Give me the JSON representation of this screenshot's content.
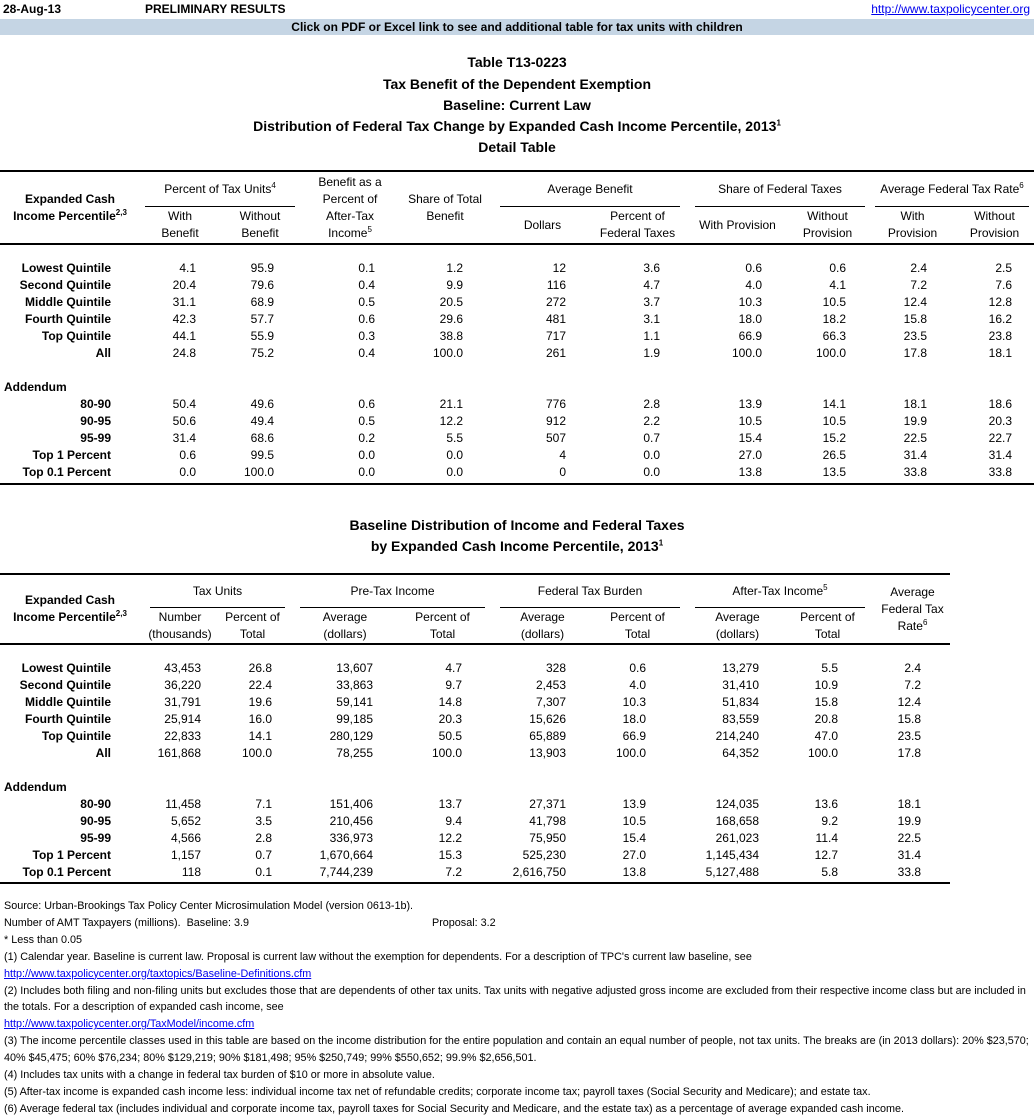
{
  "header": {
    "date": "28-Aug-13",
    "status": "PRELIMINARY RESULTS",
    "link": "http://www.taxpolicycenter.org",
    "banner": "Click on PDF or Excel link to see and additional table for tax units with children"
  },
  "title": [
    "Table T13-0223",
    "Tax Benefit of the Dependent Exemption",
    "Baseline: Current Law",
    {
      "text": "Distribution of Federal Tax Change by Expanded Cash Income Percentile, 2013",
      "sup": "1"
    },
    "Detail Table"
  ],
  "table1": {
    "row_header": {
      "text": "Expanded Cash Income Percentile",
      "sup": "2,3"
    },
    "header": [
      {
        "text": "Percent of Tax Units",
        "sup": "4",
        "columns": [
          "With Benefit",
          "Without Benefit"
        ]
      },
      {
        "text": "Benefit as a Percent of After-Tax Income",
        "sup": "5"
      },
      "Share of Total Benefit",
      {
        "text": "Average Benefit",
        "columns": [
          "Dollars",
          "Percent of Federal Taxes"
        ]
      },
      {
        "text": "Share of Federal Taxes",
        "columns": [
          "With Provision",
          "Without Provision"
        ]
      },
      {
        "text": "Average Federal Tax Rate",
        "sup": "6",
        "columns": [
          "With Provision",
          "Without Provision"
        ]
      }
    ],
    "rows": [
      [
        "Lowest Quintile",
        "4.1",
        "95.9",
        "0.1",
        "1.2",
        "12",
        "3.6",
        "0.6",
        "0.6",
        "2.4",
        "2.5"
      ],
      [
        "Second Quintile",
        "20.4",
        "79.6",
        "0.4",
        "9.9",
        "116",
        "4.7",
        "4.0",
        "4.1",
        "7.2",
        "7.6"
      ],
      [
        "Middle Quintile",
        "31.1",
        "68.9",
        "0.5",
        "20.5",
        "272",
        "3.7",
        "10.3",
        "10.5",
        "12.4",
        "12.8"
      ],
      [
        "Fourth Quintile",
        "42.3",
        "57.7",
        "0.6",
        "29.6",
        "481",
        "3.1",
        "18.0",
        "18.2",
        "15.8",
        "16.2"
      ],
      [
        "Top Quintile",
        "44.1",
        "55.9",
        "0.3",
        "38.8",
        "717",
        "1.1",
        "66.9",
        "66.3",
        "23.5",
        "23.8"
      ],
      [
        "All",
        "24.8",
        "75.2",
        "0.4",
        "100.0",
        "261",
        "1.9",
        "100.0",
        "100.0",
        "17.8",
        "18.1"
      ]
    ],
    "addendum_label": "Addendum",
    "addendum_rows": [
      [
        "80-90",
        "50.4",
        "49.6",
        "0.6",
        "21.1",
        "776",
        "2.8",
        "13.9",
        "14.1",
        "18.1",
        "18.6"
      ],
      [
        "90-95",
        "50.6",
        "49.4",
        "0.5",
        "12.2",
        "912",
        "2.2",
        "10.5",
        "10.5",
        "19.9",
        "20.3"
      ],
      [
        "95-99",
        "31.4",
        "68.6",
        "0.2",
        "5.5",
        "507",
        "0.7",
        "15.4",
        "15.2",
        "22.5",
        "22.7"
      ],
      [
        "Top 1 Percent",
        "0.6",
        "99.5",
        "0.0",
        "0.0",
        "4",
        "0.0",
        "27.0",
        "26.5",
        "31.4",
        "31.4"
      ],
      [
        "Top 0.1 Percent",
        "0.0",
        "100.0",
        "0.0",
        "0.0",
        "0",
        "0.0",
        "13.8",
        "13.5",
        "33.8",
        "33.8"
      ]
    ]
  },
  "title2": [
    "Baseline Distribution of Income and Federal Taxes",
    {
      "text": "by Expanded Cash Income Percentile, 2013",
      "sup": "1"
    }
  ],
  "table2": {
    "row_header": {
      "text": "Expanded Cash Income Percentile",
      "sup": "2,3"
    },
    "header": [
      {
        "text": "Tax Units",
        "columns": [
          "Number (thousands)",
          "Percent of Total"
        ]
      },
      {
        "text": "Pre-Tax Income",
        "columns": [
          "Average (dollars)",
          "Percent of Total"
        ]
      },
      {
        "text": "Federal Tax Burden",
        "columns": [
          "Average (dollars)",
          "Percent of Total"
        ]
      },
      {
        "text": "After-Tax Income",
        "sup": "5",
        "columns": [
          "Average (dollars)",
          "Percent of Total"
        ]
      },
      {
        "text": "Average Federal Tax Rate",
        "sup": "6"
      }
    ],
    "rows": [
      [
        "Lowest Quintile",
        "43,453",
        "26.8",
        "13,607",
        "4.7",
        "328",
        "0.6",
        "13,279",
        "5.5",
        "2.4"
      ],
      [
        "Second Quintile",
        "36,220",
        "22.4",
        "33,863",
        "9.7",
        "2,453",
        "4.0",
        "31,410",
        "10.9",
        "7.2"
      ],
      [
        "Middle Quintile",
        "31,791",
        "19.6",
        "59,141",
        "14.8",
        "7,307",
        "10.3",
        "51,834",
        "15.8",
        "12.4"
      ],
      [
        "Fourth Quintile",
        "25,914",
        "16.0",
        "99,185",
        "20.3",
        "15,626",
        "18.0",
        "83,559",
        "20.8",
        "15.8"
      ],
      [
        "Top Quintile",
        "22,833",
        "14.1",
        "280,129",
        "50.5",
        "65,889",
        "66.9",
        "214,240",
        "47.0",
        "23.5"
      ],
      [
        "All",
        "161,868",
        "100.0",
        "78,255",
        "100.0",
        "13,903",
        "100.0",
        "64,352",
        "100.0",
        "17.8"
      ]
    ],
    "addendum_label": "Addendum",
    "addendum_rows": [
      [
        "80-90",
        "11,458",
        "7.1",
        "151,406",
        "13.7",
        "27,371",
        "13.9",
        "124,035",
        "13.6",
        "18.1"
      ],
      [
        "90-95",
        "5,652",
        "3.5",
        "210,456",
        "9.4",
        "41,798",
        "10.5",
        "168,658",
        "9.2",
        "19.9"
      ],
      [
        "95-99",
        "4,566",
        "2.8",
        "336,973",
        "12.2",
        "75,950",
        "15.4",
        "261,023",
        "11.4",
        "22.5"
      ],
      [
        "Top 1 Percent",
        "1,157",
        "0.7",
        "1,670,664",
        "15.3",
        "525,230",
        "27.0",
        "1,145,434",
        "12.7",
        "31.4"
      ],
      [
        "Top 0.1 Percent",
        "118",
        "0.1",
        "7,744,239",
        "7.2",
        "2,616,750",
        "13.8",
        "5,127,488",
        "5.8",
        "33.8"
      ]
    ]
  },
  "footnotes": {
    "source": "Source: Urban-Brookings Tax Policy Center Microsimulation Model (version 0613-1b).",
    "amt": "Number of AMT Taxpayers (millions).  Baseline: 3.9",
    "proposal": "Proposal: 3.2",
    "less": "* Less than 0.05",
    "notes": [
      {
        "text": "(1) Calendar year. Baseline is current law.  Proposal is current law without the exemption for dependents.  For a description of TPC's current law baseline, see",
        "link": "http://www.taxpolicycenter.org/taxtopics/Baseline-Definitions.cfm"
      },
      {
        "text": "(2) Includes both filing and non-filing units but excludes those that are dependents of other tax units. Tax units with negative adjusted gross income are excluded from their respective income class but are included in the totals. For a description of expanded cash income, see",
        "link": "http://www.taxpolicycenter.org/TaxModel/income.cfm"
      },
      "(3) The income percentile classes used in this table are based on the income distribution for the entire population and contain an equal number of people, not tax units. The breaks are (in 2013 dollars): 20% $23,570; 40% $45,475; 60% $76,234; 80% $129,219; 90% $181,498; 95% $250,749; 99% $550,652; 99.9% $2,656,501.",
      "(4) Includes tax units with a change in federal tax burden of $10 or more in absolute value.",
      "(5) After-tax income is expanded cash income less: individual income tax net of refundable credits; corporate income tax; payroll taxes (Social Security and Medicare); and estate tax.",
      "(6) Average federal tax (includes individual and corporate income tax, payroll taxes for Social Security and Medicare, and the estate tax) as a percentage of average expanded cash income."
    ]
  }
}
